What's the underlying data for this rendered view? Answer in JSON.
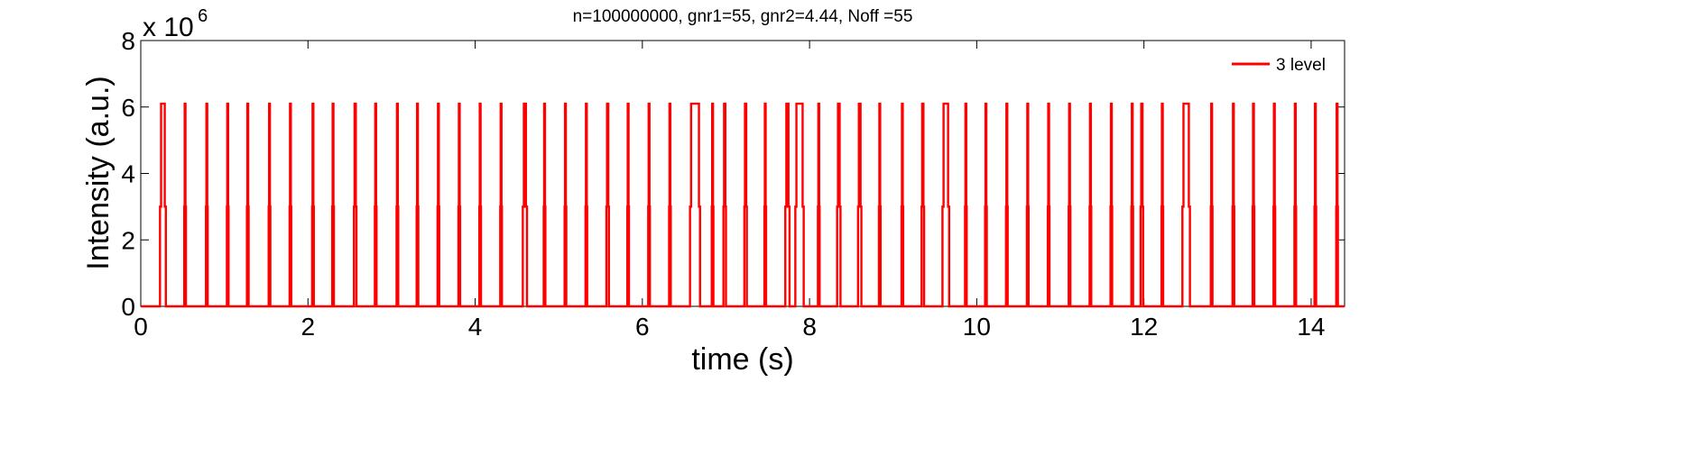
{
  "chart_data": {
    "type": "line",
    "title": "n=100000000, gnr1=55, gnr2=4.44, Noff =55",
    "xlabel": "time (s)",
    "ylabel": "Intensity (a.u.)",
    "xlim": [
      0,
      14.4
    ],
    "ylim": [
      0,
      8000000
    ],
    "y_scale_multiplier": {
      "base": "x 10",
      "exponent": "6"
    },
    "xticks": [
      0,
      2,
      4,
      6,
      8,
      10,
      12,
      14
    ],
    "xtick_labels": [
      "0",
      "2",
      "4",
      "6",
      "8",
      "10",
      "12",
      "14"
    ],
    "yticks": [
      0,
      2000000,
      4000000,
      6000000,
      8000000
    ],
    "ytick_labels": [
      "0",
      "2",
      "4",
      "6",
      "8"
    ],
    "grid": false,
    "legend_position": "top-right",
    "series": [
      {
        "name": "3 level",
        "color": "#ff0000",
        "high_level": 6100000,
        "mid_level": 3000000,
        "low_level": 0,
        "burst_intervals": [
          [
            0.23,
            0.3
          ],
          [
            0.52,
            0.54
          ],
          [
            0.78,
            0.8
          ],
          [
            1.03,
            1.05
          ],
          [
            1.27,
            1.29
          ],
          [
            1.53,
            1.55
          ],
          [
            1.78,
            1.8
          ],
          [
            2.05,
            2.07
          ],
          [
            2.29,
            2.31
          ],
          [
            2.55,
            2.58
          ],
          [
            2.8,
            2.82
          ],
          [
            3.06,
            3.08
          ],
          [
            3.3,
            3.32
          ],
          [
            3.55,
            3.57
          ],
          [
            3.8,
            3.82
          ],
          [
            4.05,
            4.07
          ],
          [
            4.3,
            4.32
          ],
          [
            4.57,
            4.62
          ],
          [
            4.82,
            4.84
          ],
          [
            5.07,
            5.09
          ],
          [
            5.32,
            5.34
          ],
          [
            5.57,
            5.6
          ],
          [
            5.82,
            5.84
          ],
          [
            6.07,
            6.09
          ],
          [
            6.32,
            6.34
          ],
          [
            6.57,
            6.69
          ],
          [
            6.83,
            6.85
          ],
          [
            6.97,
            7.0
          ],
          [
            7.22,
            7.25
          ],
          [
            7.46,
            7.48
          ],
          [
            7.71,
            7.76
          ],
          [
            7.83,
            7.93
          ],
          [
            8.1,
            8.12
          ],
          [
            8.33,
            8.37
          ],
          [
            8.58,
            8.62
          ],
          [
            8.83,
            8.85
          ],
          [
            9.1,
            9.12
          ],
          [
            9.34,
            9.37
          ],
          [
            9.59,
            9.67
          ],
          [
            9.86,
            9.88
          ],
          [
            10.1,
            10.12
          ],
          [
            10.35,
            10.37
          ],
          [
            10.6,
            10.62
          ],
          [
            10.85,
            10.87
          ],
          [
            11.1,
            11.12
          ],
          [
            11.35,
            11.37
          ],
          [
            11.6,
            11.62
          ],
          [
            11.85,
            11.87
          ],
          [
            11.96,
            11.99
          ],
          [
            12.21,
            12.23
          ],
          [
            12.46,
            12.55
          ],
          [
            12.8,
            12.82
          ],
          [
            13.06,
            13.08
          ],
          [
            13.3,
            13.32
          ],
          [
            13.55,
            13.57
          ],
          [
            13.8,
            13.82
          ],
          [
            14.04,
            14.06
          ],
          [
            14.3,
            14.32
          ]
        ]
      }
    ]
  }
}
